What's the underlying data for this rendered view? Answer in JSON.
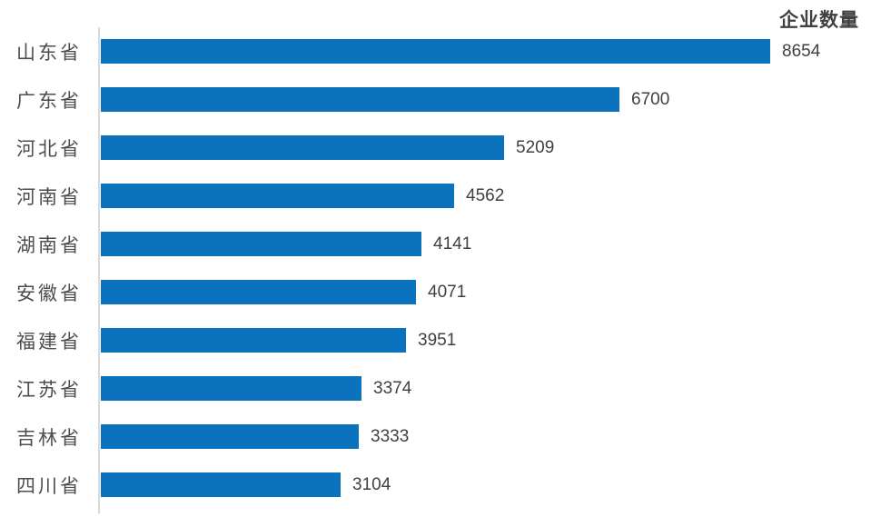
{
  "chart_data": {
    "type": "bar",
    "orientation": "horizontal",
    "title": "企业数量",
    "categories": [
      "山东省",
      "广东省",
      "河北省",
      "河南省",
      "湖南省",
      "安徽省",
      "福建省",
      "江苏省",
      "吉林省",
      "四川省"
    ],
    "values": [
      8654,
      6700,
      5209,
      4562,
      4141,
      4071,
      3951,
      3374,
      3333,
      3104
    ],
    "xlabel": "",
    "ylabel": "",
    "xlim": [
      0,
      8700
    ],
    "grid": false,
    "legend": false,
    "data_labels": true,
    "bar_color": "#0b72be",
    "axis_line_color": "#d9d9d9",
    "category_label_color": "#4d4d4d",
    "value_label_color": "#404040",
    "title_color": "#404040"
  }
}
